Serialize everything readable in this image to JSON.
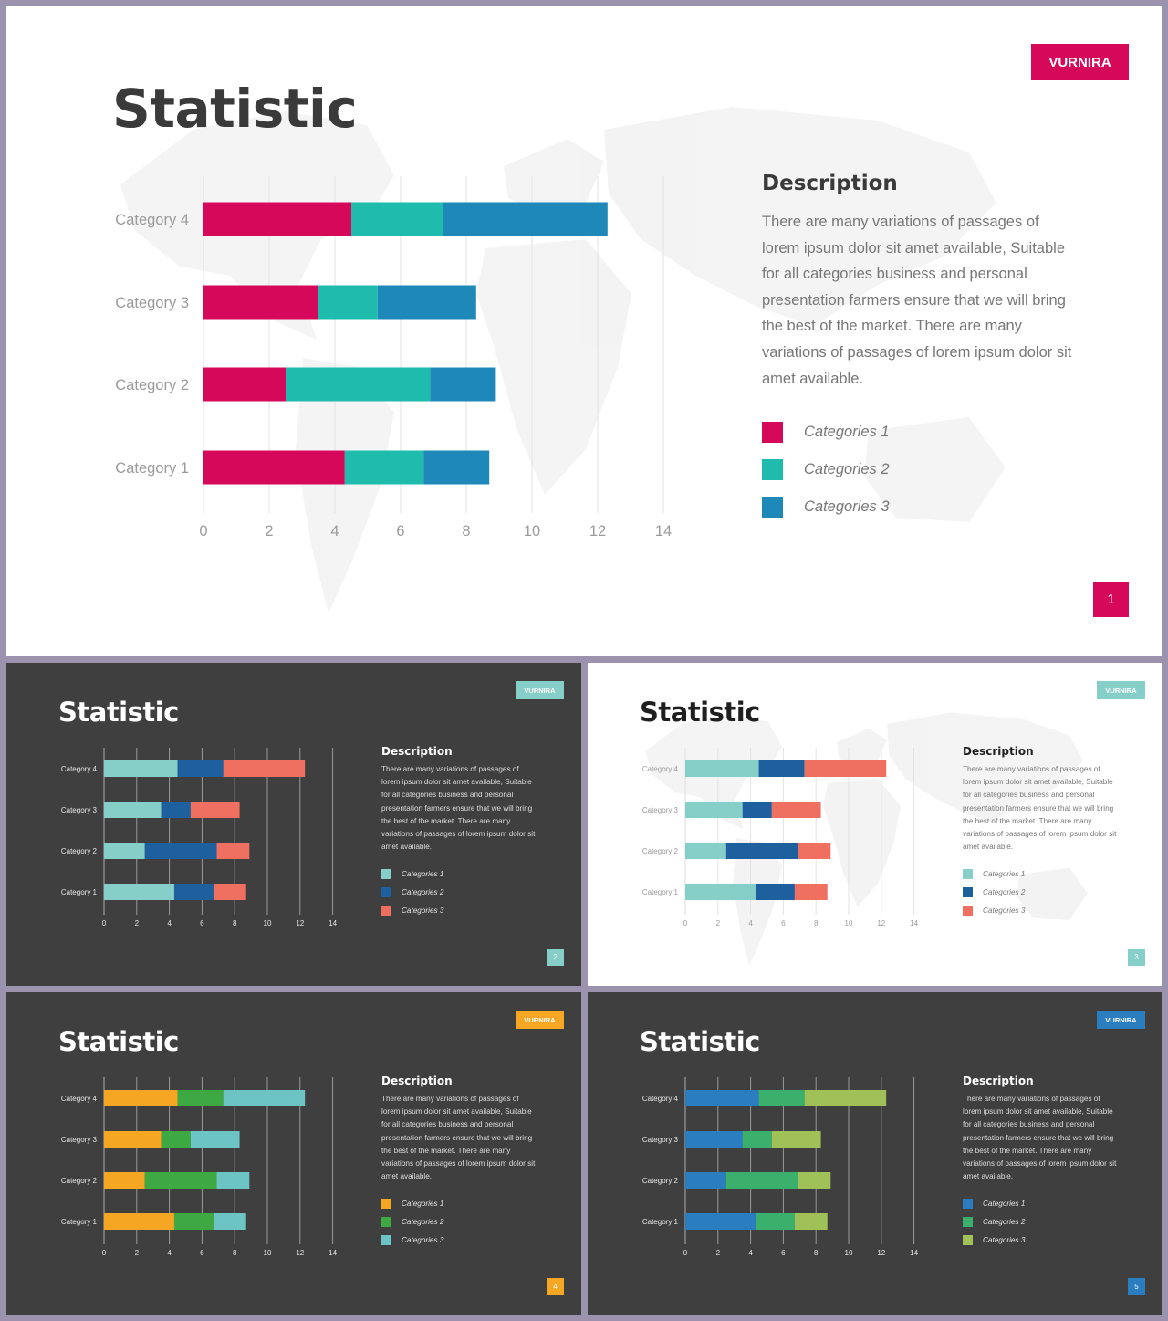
{
  "slides": [
    {
      "theme": "light",
      "title": "Statistic",
      "brand": "VURNIRA",
      "brand_color": "#d6085a",
      "description_title": "Description",
      "description": "There are many variations of passages of lorem ipsum dolor sit amet available, Suitable for all categories business and personal presentation farmers ensure that we will bring the best of the market. There are many variations of passages of lorem ipsum dolor sit amet available.",
      "page_number": "1",
      "colors": [
        "#d6085a",
        "#1fbcad",
        "#1e88b8"
      ],
      "legend": [
        "Categories 1",
        "Categories 2",
        "Categories 3"
      ]
    },
    {
      "theme": "dark",
      "title": "Statistic",
      "brand": "VURNIRA",
      "brand_color": "#86cfc8",
      "description_title": "Description",
      "description": "There are many variations of passages of lorem ipsum dolor sit amet available, Suitable for all categories business and personal presentation farmers ensure that we will bring the best of the market. There are many variations of passages of lorem ipsum dolor sit amet available.",
      "page_number": "2",
      "colors": [
        "#86cfc8",
        "#1e5f9e",
        "#ef6f61"
      ],
      "legend": [
        "Categories 1",
        "Categories 2",
        "Categories 3"
      ]
    },
    {
      "theme": "light",
      "title": "Statistic",
      "brand": "VURNIRA",
      "brand_color": "#86cfc8",
      "description_title": "Description",
      "description": "There are many variations of passages of lorem ipsum dolor sit amet available, Suitable for all categories business and personal presentation farmers ensure that we will bring the best of the market. There are many variations of passages of lorem ipsum dolor sit amet available.",
      "page_number": "3",
      "colors": [
        "#86cfc8",
        "#1e5f9e",
        "#ef6f61"
      ],
      "legend": [
        "Categories 1",
        "Categories 2",
        "Categories 3"
      ]
    },
    {
      "theme": "dark",
      "title": "Statistic",
      "brand": "VURNIRA",
      "brand_color": "#f5a623",
      "description_title": "Description",
      "description": "There are many variations of passages of lorem ipsum dolor sit amet available, Suitable for all categories business and personal presentation farmers ensure that we will bring the best of the market. There are many variations of passages of lorem ipsum dolor sit amet available.",
      "page_number": "4",
      "colors": [
        "#f5a623",
        "#3ea843",
        "#6cc4c4"
      ],
      "legend": [
        "Categories 1",
        "Categories 2",
        "Categories 3"
      ]
    },
    {
      "theme": "dark",
      "title": "Statistic",
      "brand": "VURNIRA",
      "brand_color": "#2a7dbe",
      "description_title": "Description",
      "description": "There are many variations of passages of lorem ipsum dolor sit amet available, Suitable for all categories business and personal presentation farmers ensure that we will bring the best of the market. There are many variations of passages of lorem ipsum dolor sit amet available.",
      "page_number": "5",
      "colors": [
        "#2a7dbe",
        "#3bb06d",
        "#9fc158"
      ],
      "legend": [
        "Categories 1",
        "Categories 2",
        "Categories 3"
      ]
    }
  ],
  "chart_data": {
    "type": "bar",
    "orientation": "horizontal",
    "stacked": true,
    "categories": [
      "Category 1",
      "Category 2",
      "Category 3",
      "Category 4"
    ],
    "series": [
      {
        "name": "Categories 1",
        "values": [
          4.3,
          2.5,
          3.5,
          4.5
        ]
      },
      {
        "name": "Categories 2",
        "values": [
          2.4,
          4.4,
          1.8,
          2.8
        ]
      },
      {
        "name": "Categories 3",
        "values": [
          2.0,
          2.0,
          3.0,
          5.0
        ]
      }
    ],
    "x_ticks": [
      "0",
      "2",
      "4",
      "6",
      "8",
      "10",
      "12",
      "14"
    ],
    "xlim": [
      0,
      14
    ],
    "grid": true,
    "legend_position": "right"
  }
}
